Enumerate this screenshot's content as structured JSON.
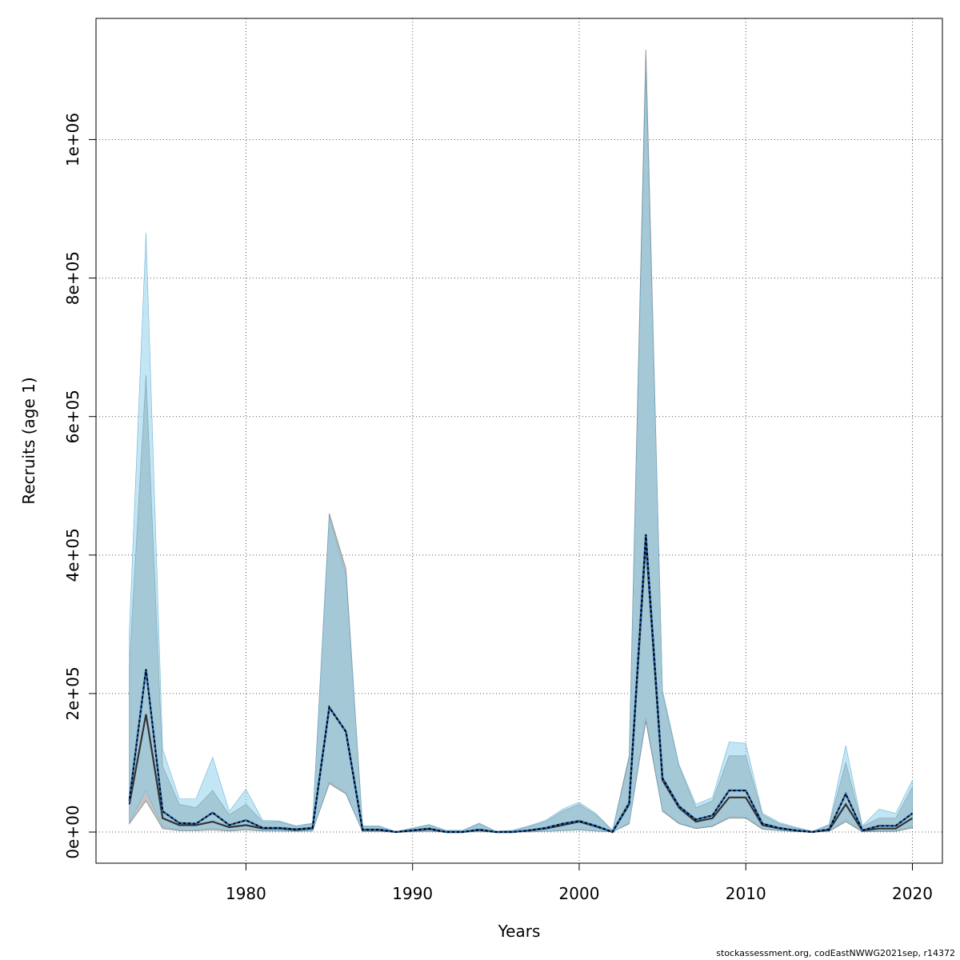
{
  "footer": {
    "source": "stockassessment.org, codEastNWWG2021sep, r14372"
  },
  "chart_data": {
    "type": "area",
    "title": "",
    "xlabel": "Years",
    "ylabel": "Recruits (age 1)",
    "xlim": [
      1971,
      2021.8
    ],
    "ylim": [
      -45000,
      1175000
    ],
    "xticks": [
      1980,
      1990,
      2000,
      2010,
      2020
    ],
    "yticks": [
      0,
      200000,
      400000,
      600000,
      800000,
      1000000
    ],
    "ytick_labels": [
      "0e+00",
      "2e+05",
      "4e+05",
      "6e+05",
      "8e+05",
      "1e+06"
    ],
    "grid": true,
    "colors": {
      "band_a": "#bdbdbd",
      "band_a_edge": "#8a8a8a",
      "band_b": "#87ceeb",
      "line_a": "#333333",
      "line_b": "#000000",
      "line_b_dash": "#1565c0"
    },
    "x": [
      1973,
      1974,
      1975,
      1976,
      1977,
      1978,
      1979,
      1980,
      1981,
      1982,
      1983,
      1984,
      1985,
      1986,
      1987,
      1988,
      1989,
      1990,
      1991,
      1992,
      1993,
      1994,
      1995,
      1996,
      1997,
      1998,
      1999,
      2000,
      2001,
      2002,
      2003,
      2004,
      2005,
      2006,
      2007,
      2008,
      2009,
      2010,
      2011,
      2012,
      2013,
      2014,
      2015,
      2016,
      2017,
      2018,
      2019,
      2020
    ],
    "series": [
      {
        "style": "solid-with-band",
        "estimate": [
          40000,
          170000,
          20000,
          10000,
          10000,
          15000,
          7000,
          10000,
          5000,
          5000,
          3000,
          5000,
          180000,
          145000,
          3000,
          3000,
          0,
          2000,
          4000,
          0,
          0,
          3000,
          0,
          0,
          2000,
          5000,
          10000,
          15000,
          8000,
          0,
          40000,
          420000,
          75000,
          35000,
          15000,
          20000,
          50000,
          50000,
          10000,
          5000,
          2000,
          0,
          3000,
          40000,
          2000,
          5000,
          5000,
          20000
        ],
        "lower": [
          12000,
          45000,
          5000,
          2000,
          2000,
          3000,
          1500,
          3000,
          1500,
          1500,
          1000,
          1500,
          70000,
          55000,
          500,
          500,
          0,
          300,
          800,
          0,
          0,
          500,
          0,
          0,
          300,
          1000,
          2000,
          3000,
          1500,
          0,
          12000,
          160000,
          30000,
          12000,
          5000,
          8000,
          20000,
          20000,
          4000,
          2000,
          500,
          0,
          1000,
          15000,
          300,
          1000,
          1000,
          6000
        ],
        "upper": [
          240000,
          660000,
          95000,
          40000,
          35000,
          60000,
          25000,
          40000,
          15000,
          15000,
          8000,
          12000,
          460000,
          380000,
          8000,
          8000,
          500,
          5000,
          10000,
          2000,
          2000,
          12000,
          1000,
          2000,
          8000,
          15000,
          30000,
          40000,
          25000,
          2000,
          110000,
          1130000,
          200000,
          95000,
          35000,
          45000,
          110000,
          110000,
          25000,
          12000,
          6000,
          1000,
          10000,
          100000,
          8000,
          20000,
          20000,
          65000
        ]
      },
      {
        "style": "dotted-with-band",
        "estimate": [
          45000,
          235000,
          30000,
          13000,
          12000,
          28000,
          10000,
          17000,
          6000,
          6000,
          4000,
          6000,
          180000,
          145000,
          3500,
          3500,
          0,
          2500,
          5000,
          0,
          0,
          3500,
          0,
          0,
          2500,
          6000,
          12000,
          16000,
          9000,
          0,
          42000,
          430000,
          78000,
          37000,
          18000,
          24000,
          60000,
          60000,
          12000,
          6000,
          2500,
          0,
          4000,
          55000,
          2500,
          9000,
          9000,
          27000
        ],
        "lower": [
          14000,
          60000,
          8000,
          3000,
          3000,
          6000,
          2500,
          5000,
          2000,
          2000,
          1000,
          2000,
          72000,
          57000,
          600,
          600,
          0,
          400,
          1000,
          0,
          0,
          700,
          0,
          0,
          400,
          1200,
          2500,
          3500,
          1800,
          0,
          13000,
          165000,
          32000,
          13000,
          6000,
          9000,
          22000,
          22000,
          5000,
          2500,
          700,
          0,
          1200,
          18000,
          500,
          2000,
          2000,
          8000
        ],
        "upper": [
          290000,
          865000,
          120000,
          48000,
          48000,
          108000,
          30000,
          62000,
          17000,
          16000,
          9000,
          13000,
          455000,
          370000,
          9000,
          9000,
          600,
          6000,
          11000,
          2500,
          2500,
          13000,
          1200,
          2500,
          9000,
          17000,
          33000,
          43000,
          27000,
          2500,
          105000,
          1100000,
          205000,
          97000,
          40000,
          50000,
          130000,
          128000,
          27000,
          14000,
          7000,
          1200,
          11000,
          125000,
          9000,
          33000,
          27000,
          75000
        ]
      }
    ]
  }
}
